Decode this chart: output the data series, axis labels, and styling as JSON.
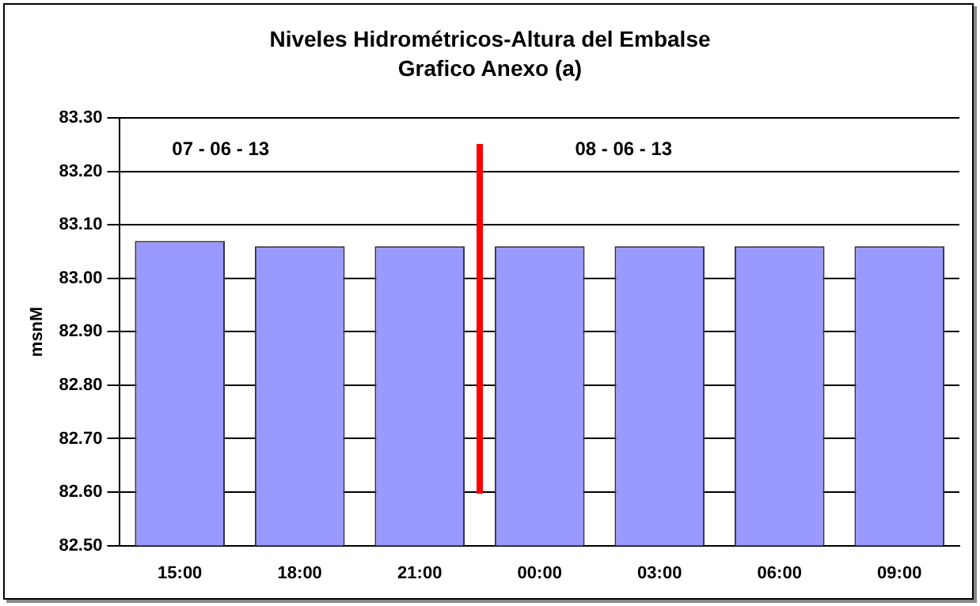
{
  "chart_data": {
    "type": "bar",
    "title": "Niveles Hidrométricos-Altura del Embalse",
    "subtitle": "Grafico Anexo (a)",
    "ylabel": "msnM",
    "categories": [
      "15:00",
      "18:00",
      "21:00",
      "00:00",
      "03:00",
      "06:00",
      "09:00"
    ],
    "values": [
      83.07,
      83.06,
      83.06,
      83.06,
      83.06,
      83.06,
      83.06
    ],
    "color": "#9999ff",
    "ylim": [
      82.5,
      83.3
    ],
    "yticks": [
      {
        "value": 82.5,
        "label": "82.50"
      },
      {
        "value": 82.6,
        "label": "82.60"
      },
      {
        "value": 82.7,
        "label": "82.70"
      },
      {
        "value": 82.8,
        "label": "82.80"
      },
      {
        "value": 82.9,
        "label": "82.90"
      },
      {
        "value": 83.0,
        "label": "83.00"
      },
      {
        "value": 83.1,
        "label": "83.10"
      },
      {
        "value": 83.2,
        "label": "83.20"
      },
      {
        "value": 83.3,
        "label": "83.30"
      }
    ],
    "grid": "y",
    "legend": false,
    "annotations": [
      "07 - 06 - 13",
      "08 - 06 - 13"
    ]
  }
}
